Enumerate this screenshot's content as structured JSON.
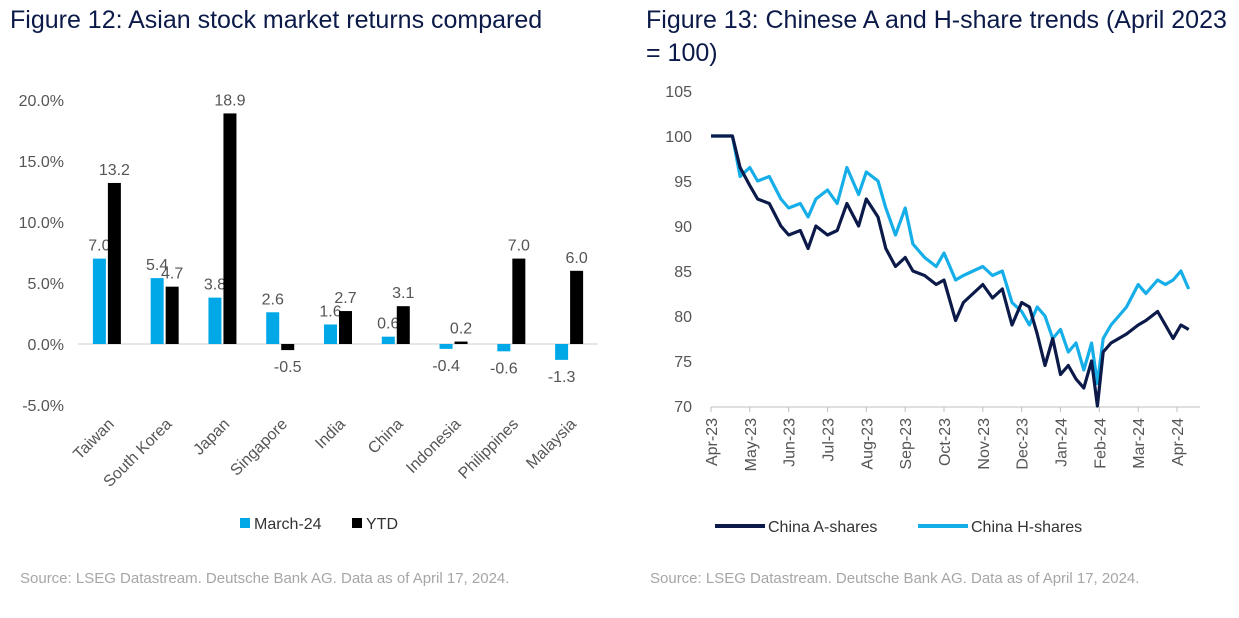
{
  "colors": {
    "march": "#00a8e8",
    "ytd": "#000000",
    "a_shares": "#0b1a48",
    "h_shares": "#15aee8",
    "axis": "#cccccc"
  },
  "figure12": {
    "title": "Figure 12: Asian stock market returns compared",
    "source": "Source: LSEG Datastream. Deutsche Bank AG. Data as of April 17, 2024."
  },
  "figure13": {
    "title": "Figure 13: Chinese A and H-share trends (April 2023 = 100)",
    "source": "Source: LSEG Datastream. Deutsche Bank AG. Data as of April 17, 2024."
  },
  "chart_data": [
    {
      "type": "bar",
      "title": "Figure 12: Asian stock market returns compared",
      "categories": [
        "Taiwan",
        "South Korea",
        "Japan",
        "Singapore",
        "India",
        "China",
        "Indonesia",
        "Philippines",
        "Malaysia"
      ],
      "series": [
        {
          "name": "March-24",
          "values": [
            7.0,
            5.4,
            3.8,
            2.6,
            1.6,
            0.6,
            -0.4,
            -0.6,
            -1.3
          ]
        },
        {
          "name": "YTD",
          "values": [
            13.2,
            4.7,
            18.9,
            -0.5,
            2.7,
            3.1,
            0.2,
            7.0,
            6.0
          ]
        }
      ],
      "ylim": [
        -5,
        20
      ],
      "yticks": [
        -5,
        0,
        5,
        10,
        15,
        20
      ],
      "ytick_labels": [
        "-5.0%",
        "0.0%",
        "5.0%",
        "10.0%",
        "15.0%",
        "20.0%"
      ],
      "legend_position": "bottom"
    },
    {
      "type": "line",
      "title": "Figure 13: Chinese A and H-share trends (April 2023 = 100)",
      "xlabels": [
        "Apr-23",
        "May-23",
        "Jun-23",
        "Jul-23",
        "Aug-23",
        "Sep-23",
        "Oct-23",
        "Nov-23",
        "Dec-23",
        "Jan-24",
        "Feb-24",
        "Mar-24",
        "Apr-24"
      ],
      "ylim": [
        70,
        105
      ],
      "yticks": [
        70,
        75,
        80,
        85,
        90,
        95,
        100,
        105
      ],
      "legend_position": "bottom",
      "series": [
        {
          "name": "China A-shares",
          "x": [
            0,
            0.35,
            0.55,
            0.75,
            1.0,
            1.2,
            1.5,
            1.8,
            2.0,
            2.3,
            2.5,
            2.7,
            3.0,
            3.25,
            3.5,
            3.8,
            4.0,
            4.3,
            4.5,
            4.75,
            5.0,
            5.2,
            5.5,
            5.8,
            6.0,
            6.3,
            6.5,
            6.75,
            7.0,
            7.25,
            7.5,
            7.75,
            8.0,
            8.2,
            8.4,
            8.6,
            8.8,
            9.0,
            9.2,
            9.4,
            9.6,
            9.8,
            9.95,
            10.1,
            10.3,
            10.5,
            10.7,
            11.0,
            11.2,
            11.5,
            11.7,
            11.9,
            12.1,
            12.3
          ],
          "values": [
            100,
            100,
            100,
            96.5,
            94.5,
            93,
            92.5,
            90,
            89,
            89.5,
            87.5,
            90,
            89,
            89.5,
            92.5,
            90,
            93,
            91,
            87.5,
            85.5,
            86.5,
            85,
            84.5,
            83.5,
            84,
            79.5,
            81.5,
            82.5,
            83.5,
            82,
            83,
            79,
            81.5,
            81,
            78,
            74.5,
            77.5,
            73.5,
            74.5,
            73,
            72,
            75,
            70,
            76,
            77,
            77.5,
            78,
            79,
            79.5,
            80.5,
            79,
            77.5,
            79,
            78.5
          ]
        },
        {
          "name": "China H-shares",
          "x": [
            0,
            0.35,
            0.55,
            0.75,
            1.0,
            1.2,
            1.5,
            1.8,
            2.0,
            2.3,
            2.5,
            2.7,
            3.0,
            3.25,
            3.5,
            3.8,
            4.0,
            4.3,
            4.5,
            4.75,
            5.0,
            5.2,
            5.5,
            5.8,
            6.0,
            6.3,
            6.5,
            6.75,
            7.0,
            7.25,
            7.5,
            7.75,
            8.0,
            8.2,
            8.4,
            8.6,
            8.8,
            9.0,
            9.2,
            9.4,
            9.6,
            9.8,
            9.95,
            10.1,
            10.3,
            10.5,
            10.7,
            11.0,
            11.2,
            11.5,
            11.7,
            11.9,
            12.1,
            12.3
          ],
          "values": [
            100,
            100,
            100,
            95.5,
            96.5,
            95,
            95.5,
            93,
            92,
            92.5,
            91,
            93,
            94,
            92.5,
            96.5,
            93.5,
            96,
            95,
            92,
            89,
            92,
            88,
            86.5,
            85.5,
            87,
            84,
            84.5,
            85,
            85.5,
            84.5,
            85,
            81.5,
            80.5,
            79,
            81,
            80,
            77.5,
            78.5,
            76,
            77,
            74,
            77,
            72.5,
            77.5,
            79,
            80,
            81,
            83.5,
            82.5,
            84,
            83.5,
            84,
            85,
            83
          ]
        }
      ]
    }
  ]
}
